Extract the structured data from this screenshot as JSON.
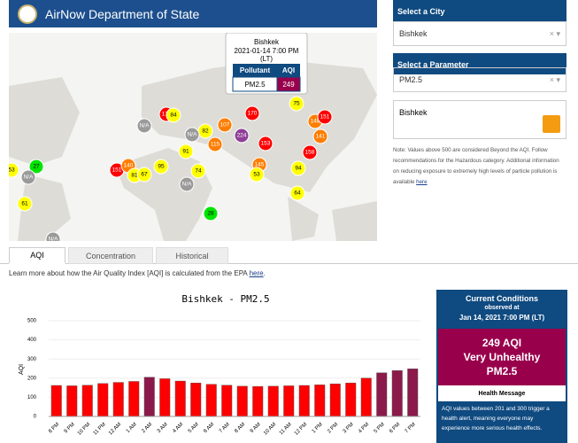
{
  "header": {
    "title": "AirNow Department of State"
  },
  "map": {
    "popup": {
      "city": "Bishkek",
      "time": "2021-01-14 7:00 PM",
      "zone": "(LT)",
      "col_pollutant": "Pollutant",
      "col_aqi": "AQI",
      "pollutant": "PM2.5",
      "aqi": "249",
      "color": "#99004c"
    },
    "markers": [
      {
        "label": "53",
        "color": "#ffff00"
      },
      {
        "label": "27",
        "color": "#00e400"
      },
      {
        "label": "N/A",
        "color": "#9a9a9a"
      },
      {
        "label": "61",
        "color": "#ffff00"
      },
      {
        "label": "151",
        "color": "#ff0000"
      },
      {
        "label": "140",
        "color": "#ff7e00"
      },
      {
        "label": "81",
        "color": "#ffff00"
      },
      {
        "label": "67",
        "color": "#ffff00"
      },
      {
        "label": "95",
        "color": "#ffff00"
      },
      {
        "label": "N/A",
        "color": "#9a9a9a"
      },
      {
        "label": "91",
        "color": "#ffff00"
      },
      {
        "label": "74",
        "color": "#ffff00"
      },
      {
        "label": "82",
        "color": "#ffff00"
      },
      {
        "label": "115",
        "color": "#ff7e00"
      },
      {
        "label": "N/A",
        "color": "#9a9a9a"
      },
      {
        "label": "N/A",
        "color": "#9a9a9a"
      },
      {
        "label": "107",
        "color": "#ff7e00"
      },
      {
        "label": "176",
        "color": "#ff0000"
      },
      {
        "label": "84",
        "color": "#ffff00"
      },
      {
        "label": "170",
        "color": "#ff0000"
      },
      {
        "label": "224",
        "color": "#8f3f97"
      },
      {
        "label": "153",
        "color": "#ff0000"
      },
      {
        "label": "145",
        "color": "#ff7e00"
      },
      {
        "label": "53",
        "color": "#ffff00"
      },
      {
        "label": "75",
        "color": "#ffff00"
      },
      {
        "label": "148",
        "color": "#ff7e00"
      },
      {
        "label": "151",
        "color": "#ff0000"
      },
      {
        "label": "141",
        "color": "#ff7e00"
      },
      {
        "label": "158",
        "color": "#ff0000"
      },
      {
        "label": "94",
        "color": "#ffff00"
      },
      {
        "label": "64",
        "color": "#ffff00"
      },
      {
        "label": "28",
        "color": "#00e400"
      },
      {
        "label": "N/A",
        "color": "#9a9a9a"
      }
    ]
  },
  "sidebar": {
    "city_label": "Select a City",
    "city": "Bishkek",
    "param_label": "Select a Parameter",
    "param": "PM2.5",
    "feed_title": "Bishkek",
    "note": "Note: Values above 500 are considered Beyond the AQI. Follow recommendations for the Hazardous category. Additional information on reducing exposure to extremely high levels of particle pollution is available",
    "note_link": "here"
  },
  "tabs": [
    "AQI",
    "Concentration",
    "Historical"
  ],
  "learn": {
    "text": "Learn more about how the Air Quality Index [AQI] is calculated from the EPA",
    "link": "here"
  },
  "chart_data": {
    "type": "bar",
    "title": "Bishkek - PM2.5",
    "y_label": "AQI",
    "categories": [
      "8 PM",
      "9 PM",
      "10 PM",
      "11 PM",
      "12 AM",
      "1 AM",
      "2 AM",
      "3 AM",
      "4 AM",
      "5 AM",
      "6 AM",
      "7 AM",
      "8 AM",
      "9 AM",
      "10 AM",
      "11 AM",
      "12 PM",
      "1 PM",
      "2 PM",
      "3 PM",
      "4 PM",
      "5 PM",
      "6 PM",
      "7 PM"
    ],
    "values": [
      162,
      160,
      163,
      172,
      178,
      183,
      205,
      197,
      185,
      175,
      168,
      163,
      158,
      157,
      158,
      160,
      162,
      165,
      170,
      175,
      200,
      228,
      240,
      249
    ],
    "colors": [
      "#ff0000",
      "#ff0000",
      "#ff0000",
      "#ff0000",
      "#ff0000",
      "#ff0000",
      "#8b1a4a",
      "#ff0000",
      "#ff0000",
      "#ff0000",
      "#ff0000",
      "#ff0000",
      "#ff0000",
      "#ff0000",
      "#ff0000",
      "#ff0000",
      "#ff0000",
      "#ff0000",
      "#ff0000",
      "#ff0000",
      "#ff0000",
      "#8b1a4a",
      "#8b1a4a",
      "#8b1a4a"
    ],
    "ylim": [
      0,
      500
    ],
    "yticks": [
      0,
      100,
      200,
      300,
      400,
      500
    ],
    "grid": true
  },
  "conditions": {
    "title": "Current Conditions",
    "observed": "observed at",
    "time": "Jan 14, 2021 7:00 PM (LT)",
    "aqi": "249 AQI",
    "category": "Very Unhealthy",
    "pollutant": "PM2.5",
    "health_title": "Health Message",
    "health_text": "AQI values between 201 and 300 trigger a health alert, meaning everyone may experience more serious health effects."
  }
}
